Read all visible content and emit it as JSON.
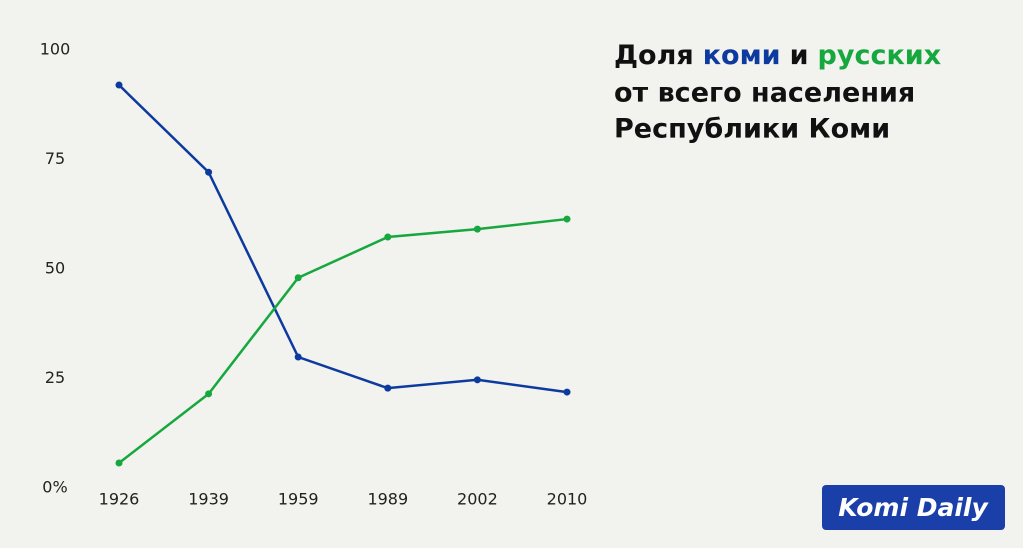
{
  "chart_data": {
    "type": "line",
    "title": [
      "Доля",
      "и",
      "от всего населения",
      "Республики Коми"
    ],
    "categories": [
      "1926",
      "1939",
      "1959",
      "1989",
      "2002",
      "2010"
    ],
    "series": [
      {
        "name": "коми",
        "color": "#0d3a9e",
        "values": [
          92.0,
          72.1,
          29.9,
          22.8,
          24.7,
          21.9
        ]
      },
      {
        "name": "русских",
        "color": "#16a83e",
        "values": [
          5.7,
          21.5,
          48.0,
          57.3,
          59.1,
          61.4
        ]
      }
    ],
    "ylim": [
      0,
      100
    ],
    "yticks": [
      {
        "value": 0,
        "label": "0%"
      },
      25,
      50,
      75,
      100
    ],
    "grid": false,
    "source": "Komi Daily"
  }
}
